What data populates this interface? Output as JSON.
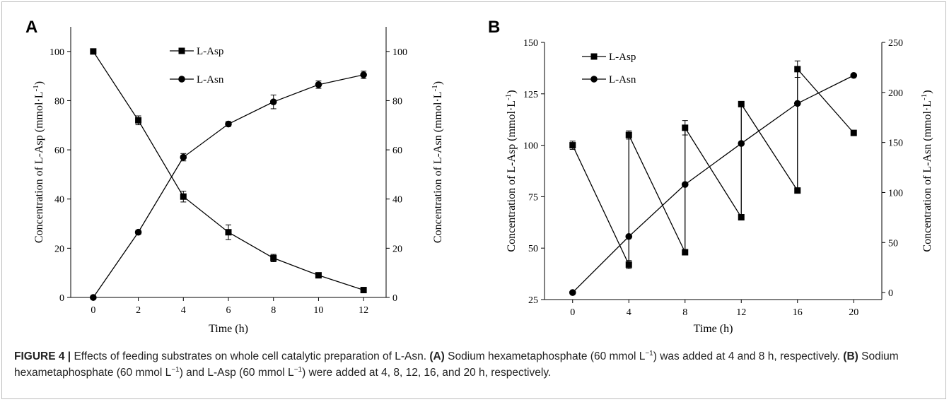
{
  "caption": {
    "label": "FIGURE 4 |",
    "text1": " Effects of feeding substrates on whole cell catalytic preparation of L-Asn. ",
    "a_tag": "(A)",
    "text2": " Sodium hexametaphosphate (60 mmol L",
    "sup1": "−1",
    "text3": ") was added at 4 and 8 h, respectively. ",
    "b_tag": "(B)",
    "text4": " Sodium hexametaphosphate (60 mmol L",
    "sup2": "−1",
    "text5": ") and L-Asp (60 mmol L",
    "sup3": "−1",
    "text6": ") were added at 4, 8, 12, 16, and 20 h, respectively."
  },
  "chart_data": [
    {
      "panel": "A",
      "type": "line",
      "xlabel": "Time (h)",
      "ylabel_left": "Concentration of L-Asp (mmol·L",
      "ylabel_right": "Concentration of L-Asn (mmol·L",
      "ylabel_sup": "-1",
      "ylabel_tail": ")",
      "xlim": [
        -1,
        13
      ],
      "ylim_left": [
        0,
        110
      ],
      "ylim_right": [
        0,
        110
      ],
      "xticks": [
        0,
        2,
        4,
        6,
        8,
        10,
        12
      ],
      "yticks_left": [
        0,
        20,
        40,
        60,
        80,
        100
      ],
      "yticks_right": [
        0,
        20,
        40,
        60,
        80,
        100
      ],
      "legend_position": "top-left",
      "series": [
        {
          "name": "L-Asp",
          "marker": "square",
          "axis": "left",
          "x": [
            0,
            2,
            4,
            6,
            8,
            10,
            12
          ],
          "y": [
            100,
            72,
            41,
            26.5,
            16,
            9,
            3
          ],
          "err": [
            0,
            1.8,
            2.2,
            3,
            1.5,
            1,
            0.5
          ]
        },
        {
          "name": "L-Asn",
          "marker": "circle",
          "axis": "right",
          "x": [
            0,
            2,
            4,
            6,
            8,
            10,
            12
          ],
          "y": [
            0,
            26.5,
            57,
            70.5,
            79.5,
            86.5,
            90.5
          ],
          "err": [
            0,
            0.8,
            1.5,
            1,
            2.8,
            1.5,
            1.5
          ]
        }
      ]
    },
    {
      "panel": "B",
      "type": "line",
      "xlabel": "Time (h)",
      "ylabel_left": "Concentration of L-Asp (mmol·L",
      "ylabel_right": "Concentration of L-Asn (mmol·L",
      "ylabel_sup": "-1",
      "ylabel_tail": ")",
      "xlim": [
        -2,
        22
      ],
      "ylim_left": [
        25,
        150
      ],
      "ylim_right": [
        -7,
        250
      ],
      "xticks": [
        0,
        4,
        8,
        12,
        16,
        20
      ],
      "yticks_left": [
        25,
        50,
        75,
        100,
        125,
        150
      ],
      "yticks_right": [
        0,
        50,
        100,
        150,
        200,
        250
      ],
      "legend_position": "top-left",
      "series": [
        {
          "name": "L-Asp",
          "marker": "square",
          "axis": "left",
          "x": [
            0,
            4,
            4,
            8,
            8,
            12,
            12,
            16,
            16,
            20
          ],
          "y": [
            100,
            42,
            105,
            48,
            108.5,
            65,
            120,
            78,
            137,
            106
          ],
          "err": [
            2,
            2,
            2,
            0,
            3.5,
            0,
            0,
            0,
            4,
            0
          ]
        },
        {
          "name": "L-Asn",
          "marker": "circle",
          "axis": "right",
          "x": [
            0,
            4,
            8,
            12,
            16,
            20
          ],
          "y": [
            0,
            56,
            108,
            149,
            189,
            217
          ],
          "err": [
            0,
            0,
            0,
            0,
            0,
            0
          ]
        }
      ]
    }
  ]
}
